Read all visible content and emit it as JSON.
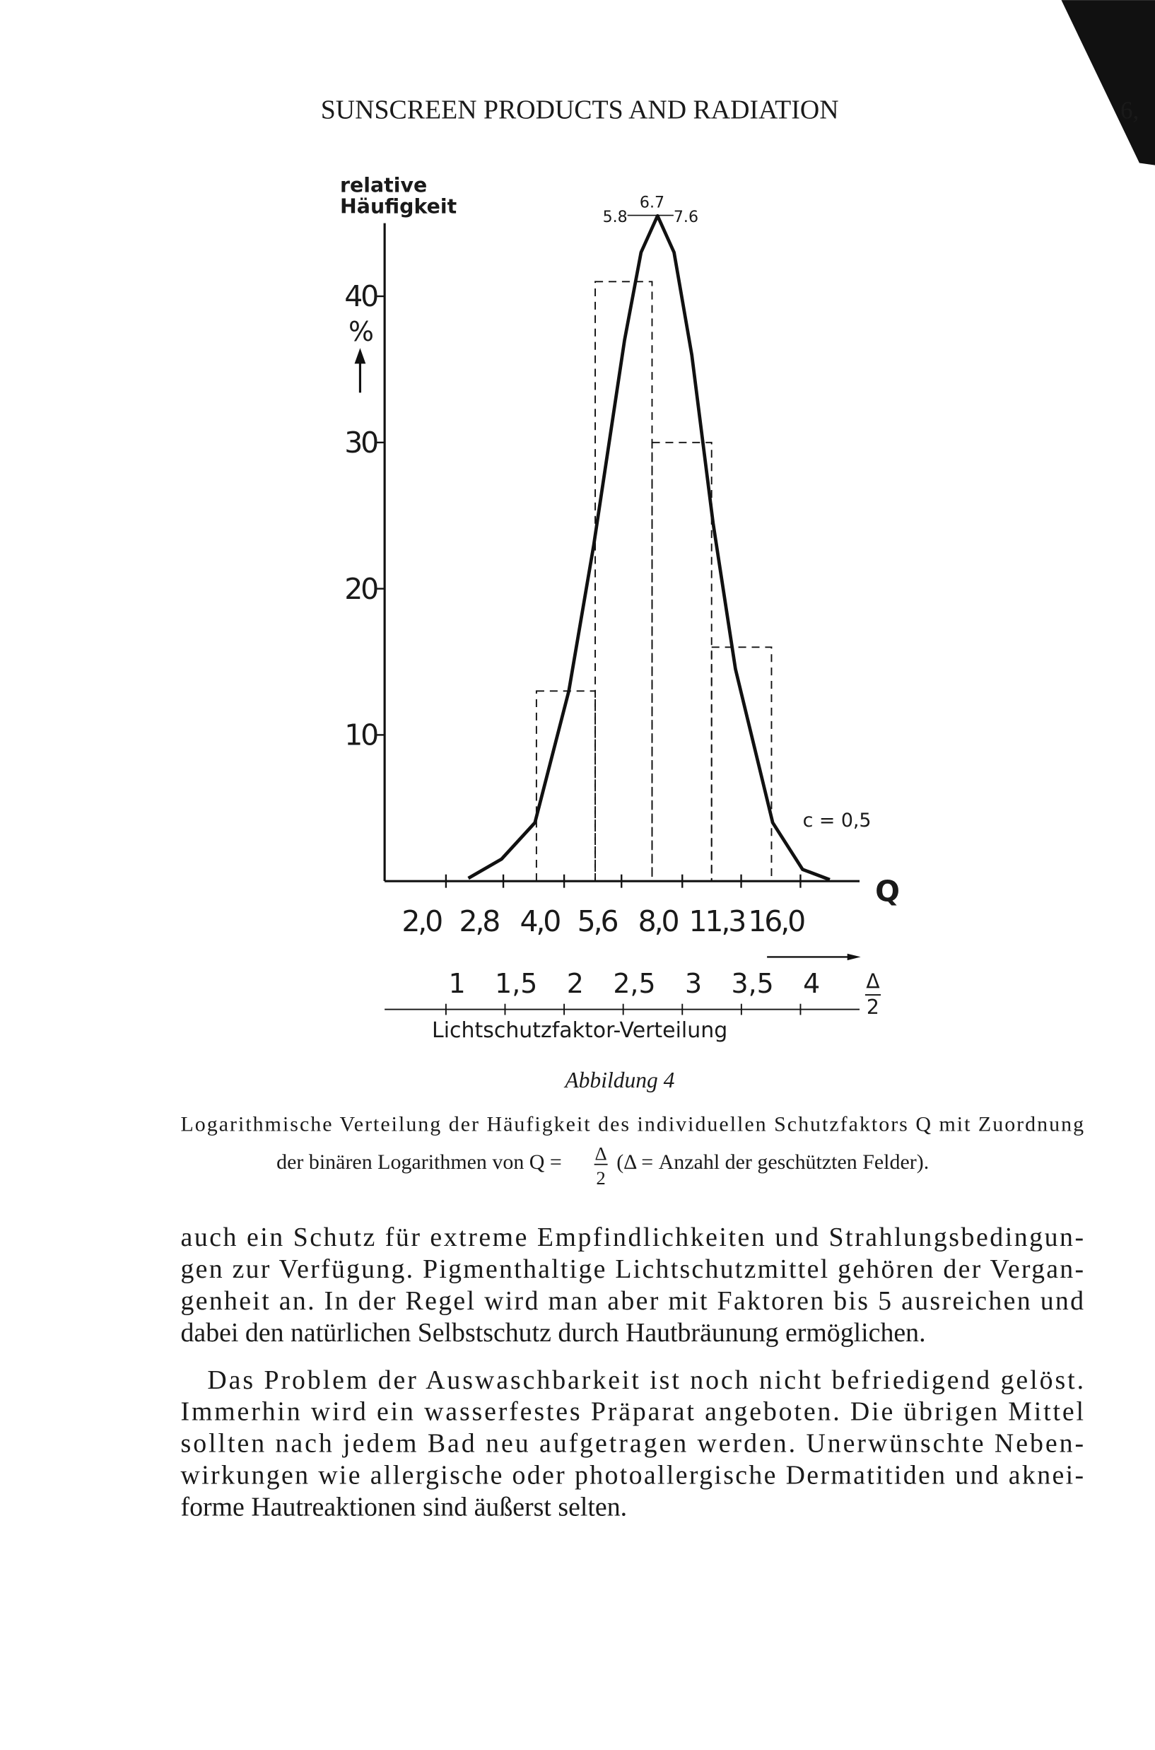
{
  "header": {
    "title": "SUNSCREEN PRODUCTS AND RADIATION",
    "page": "6,"
  },
  "chart_data": {
    "type": "histogram",
    "ylabel": [
      "relative",
      "Häufigkeit"
    ],
    "yunit": "%",
    "ylim": [
      0,
      45
    ],
    "yticks": [
      10,
      20,
      30,
      40
    ],
    "xlabel": "Q",
    "xscale": "log2",
    "xlim": [
      1.414,
      22.63
    ],
    "xticks": [
      {
        "value": 2,
        "label": "2,0"
      },
      {
        "value": 2.8,
        "label": "2,8"
      },
      {
        "value": 4,
        "label": "4,0"
      },
      {
        "value": 5.6,
        "label": "5,6"
      },
      {
        "value": 8,
        "label": "8,0"
      },
      {
        "value": 11.3,
        "label": "11,3"
      },
      {
        "value": 16,
        "label": "16,0"
      }
    ],
    "x2label": "Lichtschutzfaktor-Verteilung",
    "x2unit": {
      "numerator": "Δ",
      "denominator": "2"
    },
    "x2lim": [
      0.5,
      4.5
    ],
    "x2ticks": [
      1,
      {
        "value": 1.5,
        "label": "1,5"
      },
      2,
      {
        "value": 2.5,
        "label": "2,5"
      },
      3,
      {
        "value": 3.5,
        "label": "3,5"
      },
      4
    ],
    "bins": [
      3.4,
      4.8,
      6.7,
      9.5,
      13.5
    ],
    "values": [
      13,
      41,
      30,
      16
    ],
    "color": "#111111",
    "curve": {
      "x": [
        2.28,
        2.77,
        3.37,
        4.11,
        4.76,
        5.7,
        6.28,
        6.92,
        7.62,
        8.46,
        9.58,
        10.93,
        13.6,
        16.2,
        19.0
      ],
      "y": [
        0.2,
        1.5,
        4,
        13,
        23,
        37,
        43,
        45.5,
        43,
        36,
        24.5,
        14.5,
        4,
        0.8,
        0.1
      ]
    },
    "peak_marks": [
      5.8,
      6.7,
      7.6
    ],
    "annotation": "c = 0,5"
  },
  "caption": {
    "label": "Abbildung 4",
    "line1": "Logarithmische Verteilung der Häufigkeit des individuellen Schutzfaktors Q mit Zuordnung",
    "line2": {
      "prefix": "der binären Logarithmen von Q =",
      "numerator": "Δ",
      "denominator": "2",
      "suffix": "(Δ = Anzahl der geschützten Felder)."
    }
  },
  "body": {
    "paragraphs": [
      [
        "auch ein Schutz für extreme Empfindlichkeiten und Strahlungsbedingun-",
        "gen zur Verfügung. Pigmenthaltige Lichtschutzmittel gehören der Vergan-",
        "genheit an. In der Regel wird man aber mit Faktoren bis 5 ausreichen und",
        "dabei den natürlichen Selbstschutz durch Hautbräunung ermöglichen."
      ],
      [
        "Das Problem der Auswaschbarkeit ist noch nicht befriedigend gelöst.",
        "Immerhin wird ein wasserfestes Präparat angeboten. Die übrigen Mittel",
        "sollten nach jedem Bad neu aufgetragen werden. Unerwünschte Neben-",
        "wirkungen wie allergische oder photoallergische Dermatitiden und aknei-",
        "forme Hautreaktionen sind äußerst selten."
      ]
    ]
  }
}
